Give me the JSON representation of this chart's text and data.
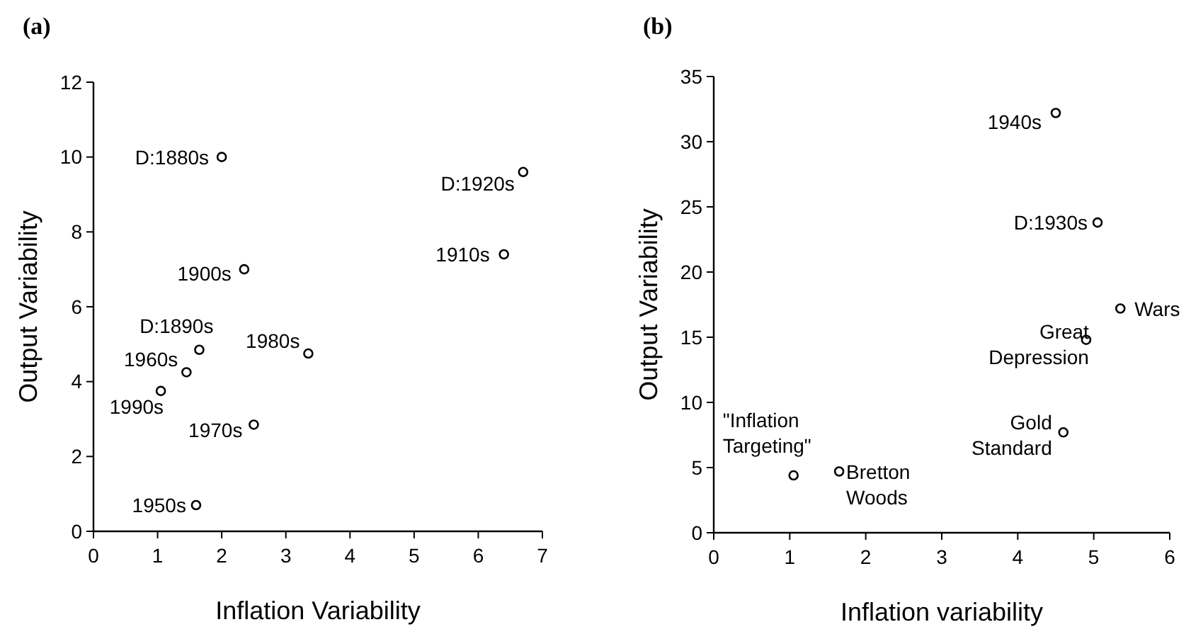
{
  "chart_data": [
    {
      "type": "scatter",
      "title": "(a)",
      "xlabel": "Inflation Variability",
      "ylabel": "Output Variability",
      "xlim": [
        0,
        7
      ],
      "ylim": [
        0,
        12
      ],
      "xticks": [
        0,
        1,
        2,
        3,
        4,
        5,
        6,
        7
      ],
      "yticks": [
        0,
        2,
        4,
        6,
        8,
        10,
        12
      ],
      "grid": false,
      "marker": "circle",
      "series": [
        {
          "color": "#000000",
          "x": [
            2.0,
            6.7,
            6.4,
            2.35,
            1.65,
            3.35,
            1.45,
            1.05,
            2.5,
            1.6
          ],
          "values": [
            10.0,
            9.6,
            7.4,
            7.0,
            4.85,
            4.75,
            4.25,
            3.75,
            2.85,
            0.7
          ]
        }
      ],
      "annotations": [
        {
          "text": "D:1880s",
          "x": 2.0,
          "y": 10.0
        },
        {
          "text": "D:1920s",
          "x": 6.7,
          "y": 9.6
        },
        {
          "text": "1910s",
          "x": 6.4,
          "y": 7.4
        },
        {
          "text": "1900s",
          "x": 2.35,
          "y": 7.0
        },
        {
          "text": "D:1890s",
          "x": 1.65,
          "y": 4.85
        },
        {
          "text": "1980s",
          "x": 3.35,
          "y": 4.75
        },
        {
          "text": "1960s",
          "x": 1.45,
          "y": 4.25
        },
        {
          "text": "1990s",
          "x": 1.05,
          "y": 3.75
        },
        {
          "text": "1970s",
          "x": 2.5,
          "y": 2.85
        },
        {
          "text": "1950s",
          "x": 1.6,
          "y": 0.7
        }
      ]
    },
    {
      "type": "scatter",
      "title": "(b)",
      "xlabel": "Inflation variability",
      "ylabel": "Output Variability",
      "xlim": [
        0,
        6
      ],
      "ylim": [
        0,
        35
      ],
      "xticks": [
        0,
        1,
        2,
        3,
        4,
        5,
        6
      ],
      "yticks": [
        0,
        5,
        10,
        15,
        20,
        25,
        30,
        35
      ],
      "grid": false,
      "marker": "circle",
      "series": [
        {
          "color": "#000000",
          "x": [
            4.5,
            5.05,
            5.35,
            4.9,
            4.6,
            1.05,
            1.65
          ],
          "values": [
            32.2,
            23.8,
            17.2,
            14.8,
            7.7,
            4.4,
            4.7
          ]
        }
      ],
      "annotations": [
        {
          "text": "1940s",
          "x": 4.5,
          "y": 32.2
        },
        {
          "text": "D:1930s",
          "x": 5.05,
          "y": 23.8
        },
        {
          "text": "Wars",
          "x": 5.35,
          "y": 17.2
        },
        {
          "text": "Great Depression",
          "x": 4.9,
          "y": 14.8
        },
        {
          "text": "Gold Standard",
          "x": 4.6,
          "y": 7.7
        },
        {
          "text": "\"Inflation Targeting\"",
          "x": 1.05,
          "y": 4.4
        },
        {
          "text": "Bretton Woods",
          "x": 1.65,
          "y": 4.7
        }
      ]
    }
  ]
}
